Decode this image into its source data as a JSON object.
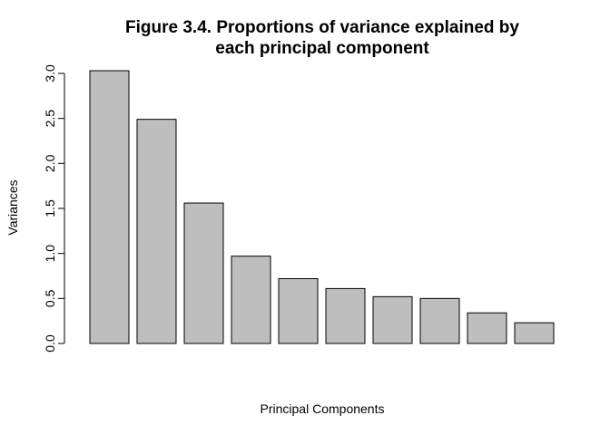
{
  "chart_data": {
    "type": "bar",
    "title_lines": [
      "Figure 3.4. Proportions of variance explained by",
      "each principal component"
    ],
    "xlabel": "Principal Components",
    "ylabel": "Variances",
    "ylim": [
      0,
      3.0
    ],
    "yticks": [
      "0.0",
      "0.5",
      "1.0",
      "1.5",
      "2.0",
      "2.5",
      "3.0"
    ],
    "values": [
      3.03,
      2.49,
      1.56,
      0.97,
      0.72,
      0.61,
      0.52,
      0.5,
      0.34,
      0.23
    ],
    "bar_color": "#bebebe",
    "grid": false
  }
}
